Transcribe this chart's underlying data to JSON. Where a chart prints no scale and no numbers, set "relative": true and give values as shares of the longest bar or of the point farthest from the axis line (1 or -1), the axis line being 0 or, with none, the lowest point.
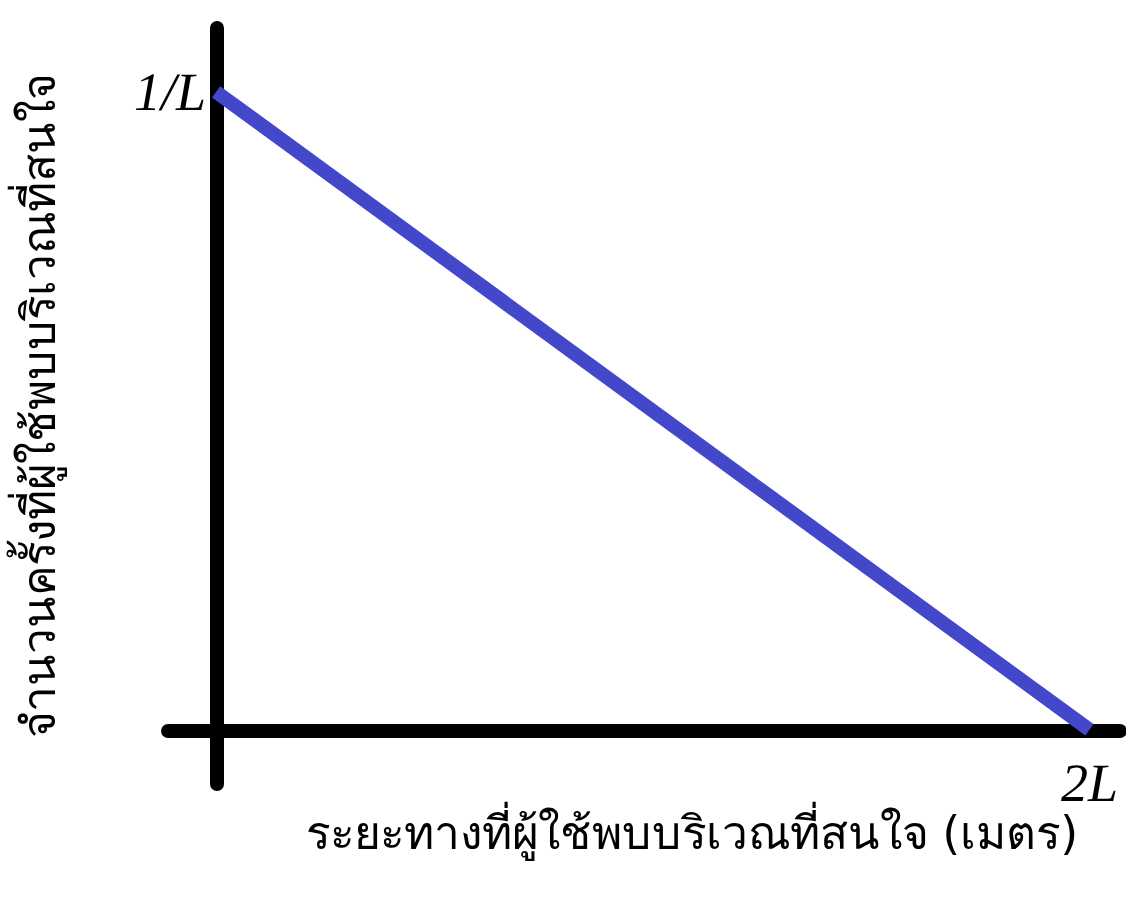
{
  "chart_data": {
    "type": "line",
    "xlabel": "ระยะทางที่ผู้ใช้พบบริเวณที่สนใจ (เมตร)",
    "ylabel": "จำนวนครั้งที่ผู้ใช้พบบริเวณที่สนใจ",
    "categories": [
      null,
      null
    ],
    "series": [
      {
        "color": "#4347c9",
        "values": [
          1,
          0
        ]
      }
    ],
    "relative": true,
    "annotations": [
      "1/L",
      {
        "text": "2L",
        "y": 0
      }
    ],
    "line_style": "solid"
  }
}
